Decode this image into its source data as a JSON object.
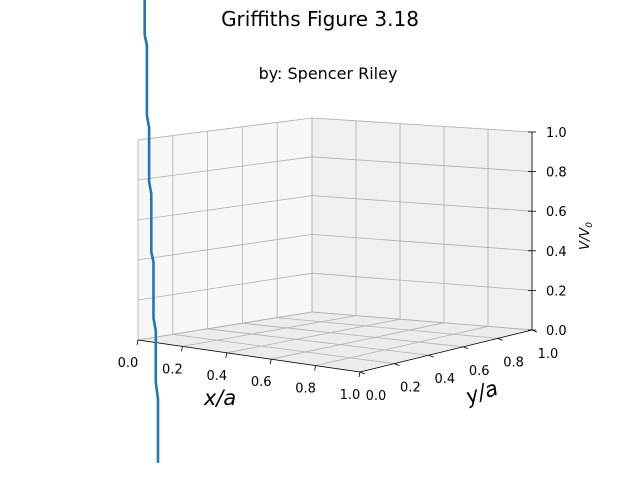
{
  "chart_data": {
    "type": "line",
    "title": "Griffiths Figure 3.18",
    "subtitle": "by: Spencer Riley",
    "xlabel": "x/a",
    "ylabel": "y/a",
    "zlabel": "V/V",
    "zlabel_sub": "0",
    "x_ticks": [
      "0.0",
      "0.2",
      "0.4",
      "0.6",
      "0.8",
      "1.0"
    ],
    "y_ticks": [
      "0.0",
      "0.2",
      "0.4",
      "0.6",
      "0.8",
      "1.0"
    ],
    "z_ticks": [
      "0.0",
      "0.2",
      "0.4",
      "0.6",
      "0.8",
      "1.0"
    ],
    "xlim": [
      0,
      1
    ],
    "ylim": [
      0,
      1
    ],
    "zlim": [
      0,
      1
    ],
    "grid": true,
    "series": [
      {
        "color": "#1f77b4",
        "points": [
          {
            "x": 0.03,
            "z": 1.72
          },
          {
            "x": 0.03,
            "z": 1.53
          },
          {
            "x": 0.04,
            "z": 1.48
          },
          {
            "x": 0.04,
            "z": 1.13
          },
          {
            "x": 0.05,
            "z": 1.07
          },
          {
            "x": 0.05,
            "z": 0.8
          },
          {
            "x": 0.06,
            "z": 0.74
          },
          {
            "x": 0.06,
            "z": 0.45
          },
          {
            "x": 0.07,
            "z": 0.4
          },
          {
            "x": 0.07,
            "z": 0.12
          },
          {
            "x": 0.08,
            "z": 0.06
          },
          {
            "x": 0.08,
            "z": -0.2
          },
          {
            "x": 0.09,
            "z": -0.28
          },
          {
            "x": 0.09,
            "z": -0.6
          }
        ]
      }
    ]
  }
}
